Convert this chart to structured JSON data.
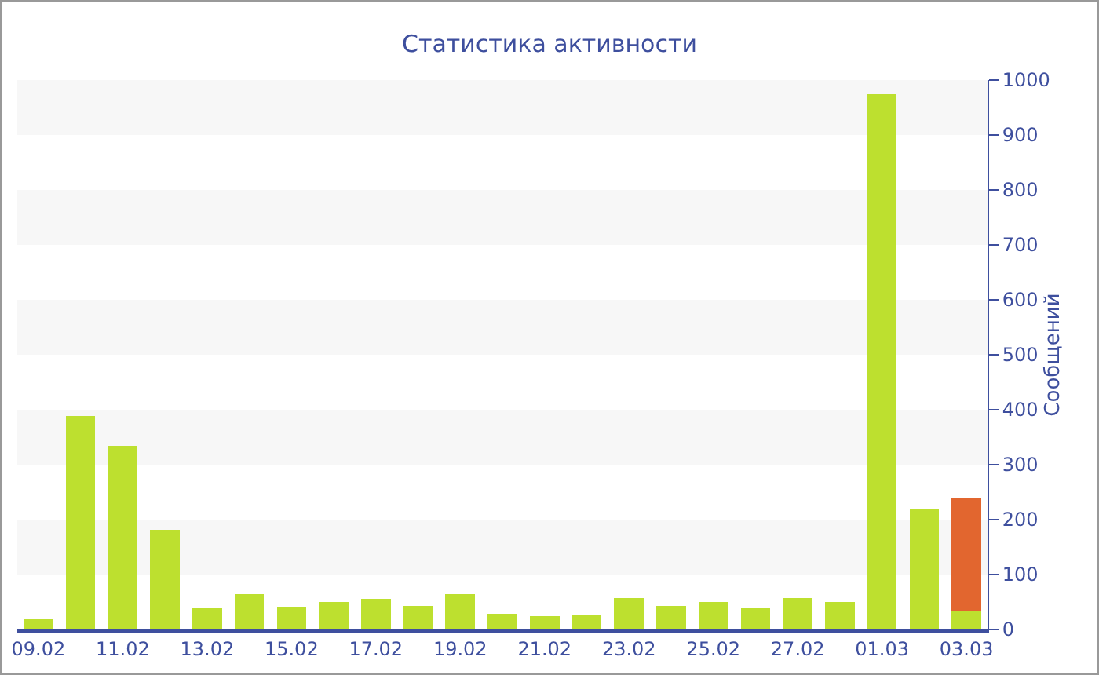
{
  "chart_data": {
    "type": "bar",
    "title": "Статистика активности",
    "ylabel": "Сообщений",
    "categories": [
      "09.02",
      null,
      "11.02",
      null,
      "13.02",
      null,
      "15.02",
      null,
      "17.02",
      null,
      "19.02",
      null,
      "21.02",
      null,
      "23.02",
      null,
      "25.02",
      null,
      "27.02",
      null,
      "01.03",
      null,
      "03.03"
    ],
    "stacked": true,
    "series": [
      {
        "color": "#bde02f",
        "values": [
          18,
          388,
          335,
          182,
          38,
          65,
          41,
          50,
          56,
          43,
          65,
          28,
          25,
          27,
          57,
          43,
          50,
          38,
          57,
          50,
          975,
          218,
          35
        ]
      },
      {
        "color": "#e2662f",
        "values": [
          null,
          null,
          null,
          null,
          null,
          null,
          null,
          null,
          null,
          null,
          null,
          null,
          null,
          null,
          null,
          null,
          null,
          null,
          null,
          null,
          null,
          null,
          203
        ]
      }
    ],
    "ylim": [
      0,
      1000
    ],
    "yticks": [
      0,
      100,
      200,
      300,
      400,
      500,
      600,
      700,
      800,
      900,
      1000
    ],
    "bands": [
      {
        "axis": "y",
        "from": 100,
        "to": 200,
        "color": "#f7f7f7"
      },
      {
        "axis": "y",
        "from": 300,
        "to": 400,
        "color": "#f7f7f7"
      },
      {
        "axis": "y",
        "from": 500,
        "to": 600,
        "color": "#f7f7f7"
      },
      {
        "axis": "y",
        "from": 700,
        "to": 800,
        "color": "#f7f7f7"
      },
      {
        "axis": "y",
        "from": 900,
        "to": 1000,
        "color": "#f7f7f7"
      }
    ]
  }
}
